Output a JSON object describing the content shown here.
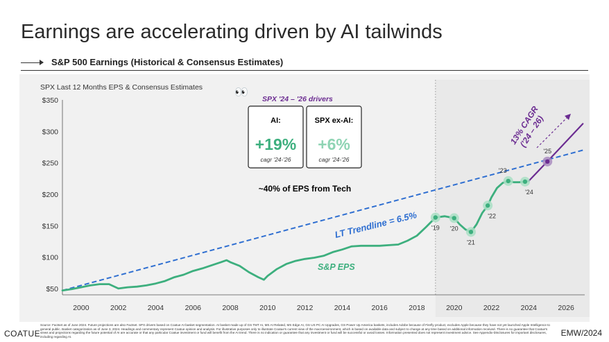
{
  "page": {
    "title": "Earnings are accelerating driven by AI tailwinds",
    "subtitle": "S&P 500 Earnings (Historical & Consensus Estimates)",
    "footnote": "Source: Factset as of June 2024. Future projections are also Factset. SPX drivers based on Coatue AI basket segmentation. AI basket made up of GS TMT AI, MS AI Related, MS Edge AI, GS US PC AI Upgrades, GS Power Up America baskets, includes Adobe because of Firefly product, excludes Apple because they have not yet launched Apple Intelligence to general public. Basket categorization as of June 3, 2024. Headings and commentary represent Coatue opinion and analysis. For illustrative purposes only to illustrate Coatue's current view of the macroenvironment, which is based on available data and subject to change at any time based on additional information received. There is no guarantee that Coatue's views and projections regarding the future potential of AI are accurate or that any particular Coatue investment or fund will benefit from the AI trend. There is no indication or guarantee that any investment or fund will be successful or avoid losses. Information presented does not represent investment advice. See Appendix-Disclosures for important disclosures, including regarding AI.",
    "logo_left": "COATUE",
    "logo_right": "EMW/2024"
  },
  "colors": {
    "eps": "#3daf7e",
    "trend": "#2f6fd1",
    "forecast": "#6b2c91",
    "marker": "#a9dfc4",
    "marker_forecast": "#a98cc0",
    "label_ai": "#3daf7e",
    "label_exai": "#8fd4b4"
  },
  "chart_data": {
    "type": "line",
    "title": "SPX Last 12 Months EPS & Consensus Estimates",
    "xlim": [
      1999,
      2027
    ],
    "ylim": [
      40,
      350
    ],
    "yticks": [
      50,
      100,
      150,
      200,
      250,
      300,
      350
    ],
    "ytick_labels": [
      "$50",
      "$100",
      "$150",
      "$200",
      "$250",
      "$300",
      "$350"
    ],
    "xticks": [
      2000,
      2002,
      2004,
      2006,
      2008,
      2010,
      2012,
      2014,
      2016,
      2018,
      2020,
      2022,
      2024,
      2026
    ],
    "xtick_labels": [
      "2000",
      "2002",
      "2004",
      "2006",
      "2008",
      "2010",
      "2012",
      "2014",
      "2016",
      "2018",
      "2020",
      "2022",
      "2024",
      "2026"
    ],
    "forecast_shade_start": 2019,
    "series": [
      {
        "name": "S&P EPS",
        "x": [
          1999.0,
          1999.5,
          2000.0,
          2000.5,
          2001.0,
          2001.5,
          2002.0,
          2002.5,
          2003.0,
          2003.5,
          2004.0,
          2004.5,
          2005.0,
          2005.5,
          2006.0,
          2006.5,
          2007.0,
          2007.5,
          2007.8,
          2008.0,
          2008.5,
          2009.0,
          2009.5,
          2009.8,
          2010.0,
          2010.5,
          2011.0,
          2011.5,
          2012.0,
          2012.5,
          2013.0,
          2013.5,
          2014.0,
          2014.5,
          2015.0,
          2015.5,
          2016.0,
          2016.5,
          2017.0,
          2017.5,
          2018.0,
          2018.5,
          2019.0,
          2019.5,
          2020.0,
          2020.3,
          2020.6,
          2020.9,
          2021.2,
          2021.5,
          2021.8,
          2022.0,
          2022.3,
          2022.6,
          2022.9,
          2023.2,
          2023.5,
          2023.8,
          2024.0
        ],
        "values": [
          47,
          49,
          52,
          55,
          57,
          57,
          50,
          52,
          53,
          55,
          58,
          62,
          68,
          72,
          78,
          82,
          87,
          92,
          95,
          92,
          86,
          76,
          68,
          64,
          70,
          81,
          89,
          94,
          97,
          99,
          102,
          108,
          112,
          117,
          118,
          118,
          118,
          119,
          120,
          126,
          134,
          148,
          163,
          165,
          162,
          152,
          144,
          140,
          152,
          170,
          182,
          195,
          210,
          218,
          221,
          219,
          219,
          220,
          221
        ]
      },
      {
        "name": "",
        "x": [
          2024.0,
          2025.0,
          2026.9
        ],
        "values": [
          221,
          252,
          312
        ]
      },
      {
        "name": "LT Trendline = 6.5%",
        "x": [
          1999.0,
          2026.9
        ],
        "values": [
          47,
          270
        ]
      }
    ],
    "markers": [
      {
        "label": "'19",
        "x": 2019.0,
        "y": 163
      },
      {
        "label": "'20",
        "x": 2020.0,
        "y": 162
      },
      {
        "label": "'21",
        "x": 2020.9,
        "y": 140
      },
      {
        "label": "'22",
        "x": 2021.8,
        "y": 182
      },
      {
        "label": "'23",
        "x": 2022.9,
        "y": 221
      },
      {
        "label": "'24",
        "x": 2023.8,
        "y": 220
      },
      {
        "label": "'25",
        "x": 2025.0,
        "y": 252
      }
    ],
    "annotations": {
      "eps_label": "S&P EPS",
      "trend_label": "LT Trendline = 6.5%",
      "cagr_line1": "13% CAGR",
      "cagr_line2": "('24 – 26)",
      "drivers_title": "SPX '24 – '26 drivers",
      "ai_label": "AI:",
      "ai_value": "+19%",
      "ai_note": "cagr '24-'26",
      "exai_label": "SPX ex-AI:",
      "exai_value": "+6%",
      "exai_note": "cagr '24-'26",
      "tech_note": "~40% of EPS from Tech",
      "eyes": "👀"
    }
  }
}
